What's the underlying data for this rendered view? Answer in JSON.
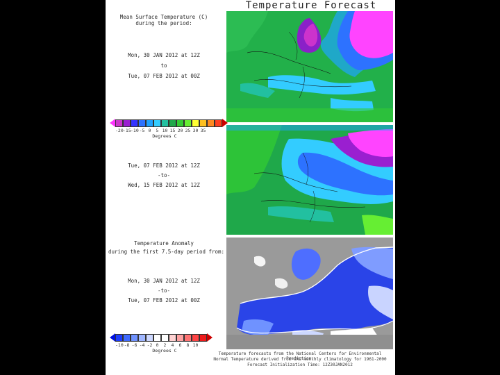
{
  "title": "Temperature Forecast",
  "panel1": {
    "heading_l1": "Mean Surface Temperature (C)",
    "heading_l2": "during the period:",
    "from": "Mon, 30 JAN 2012 at 12Z",
    "sep": "to",
    "to": "Tue, 07 FEB 2012 at 00Z"
  },
  "colorbar1": {
    "colors": [
      "#cc33cc",
      "#9a1fd0",
      "#3333ff",
      "#2d72ff",
      "#1fa2ff",
      "#33ccff",
      "#22c0a0",
      "#1fa84a",
      "#33cc33",
      "#66ee33",
      "#ffff33",
      "#ffc020",
      "#ff8a20",
      "#ff4020"
    ],
    "left_color": "#ff33ff",
    "right_color": "#cc0000",
    "ticks": [
      "-20",
      "-15",
      "-10",
      "-5",
      "0",
      "5",
      "10",
      "15",
      "20",
      "25",
      "30",
      "35"
    ],
    "label": "Degrees C"
  },
  "panel2": {
    "from": "Tue, 07 FEB 2012 at 12Z",
    "sep": "-to-",
    "to": "Wed, 15 FEB 2012 at 12Z"
  },
  "panel3": {
    "heading_l1": "Temperature Anomaly",
    "heading_l2": "during the first 7.5-day period from:",
    "from": "Mon, 30 JAN 2012 at 12Z",
    "sep": "-to-",
    "to": "Tue, 07 FEB 2012 at 00Z"
  },
  "colorbar2": {
    "colors": [
      "#1c3cff",
      "#3f6aff",
      "#6f92ff",
      "#9fb6ff",
      "#cdd8ff",
      "#ffffff",
      "#ffffff",
      "#ffd2d2",
      "#ffa2a2",
      "#ff7272",
      "#ff4444",
      "#ee1a1a"
    ],
    "left_color": "#0010e0",
    "right_color": "#cc0000",
    "ticks": [
      "-10",
      "-8",
      "-6",
      "-4",
      "-2",
      "0",
      "2",
      "4",
      "6",
      "8",
      "10"
    ],
    "label": "Degrees C"
  },
  "footer": {
    "line1": "Temperature forecasts from the National Centers for Environmental Prediction.",
    "line2": "Normal Temperature derived from CRU monthly climatology for 1961-2000",
    "line3": "Forecast Initialization Time: 12Z30JAN2012"
  }
}
